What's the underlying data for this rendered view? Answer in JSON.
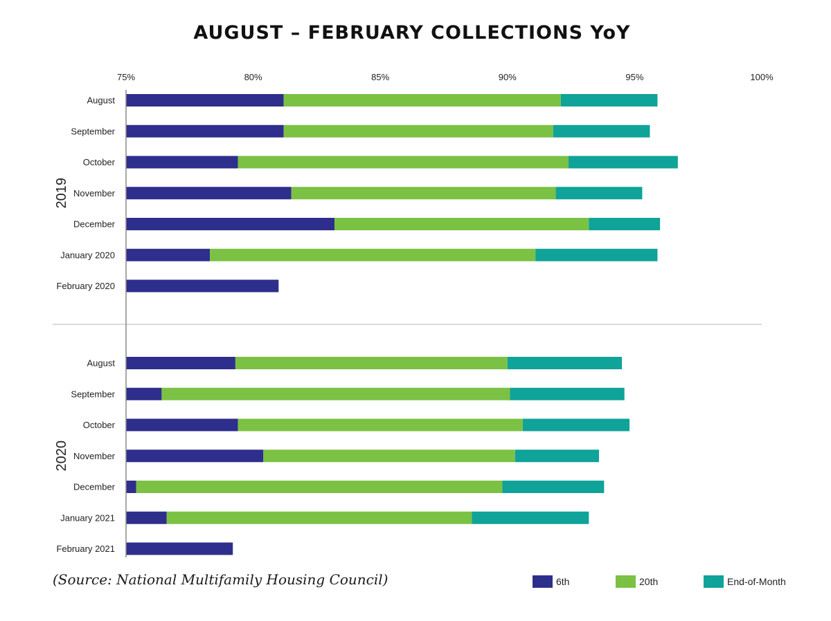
{
  "chart_data": {
    "type": "bar",
    "orientation": "horizontal",
    "stacked": true,
    "title": "AUGUST – FEBRUARY COLLECTIONS YoY",
    "xlim": [
      75,
      100
    ],
    "x_ticks": [
      "75%",
      "80%",
      "85%",
      "90%",
      "95%",
      "100%"
    ],
    "x_tick_values": [
      75,
      80,
      85,
      90,
      95,
      100
    ],
    "grid": false,
    "legend_position": "bottom-right",
    "series": [
      {
        "name": "6th",
        "color": "#2e2e8c"
      },
      {
        "name": "20th",
        "color": "#7bc144"
      },
      {
        "name": "End-of-Month",
        "color": "#0fa399"
      }
    ],
    "groups": [
      {
        "label": "2019",
        "rows": [
          {
            "category": "August",
            "values": [
              81.2,
              92.1,
              95.9
            ]
          },
          {
            "category": "September",
            "values": [
              81.2,
              91.8,
              95.6
            ]
          },
          {
            "category": "October",
            "values": [
              79.4,
              92.4,
              96.7
            ]
          },
          {
            "category": "November",
            "values": [
              81.5,
              91.9,
              95.3
            ]
          },
          {
            "category": "December",
            "values": [
              83.2,
              93.2,
              96.0
            ]
          },
          {
            "category": "January 2020",
            "values": [
              78.3,
              91.1,
              95.9
            ]
          },
          {
            "category": "February 2020",
            "values": [
              81.0,
              null,
              null
            ]
          }
        ]
      },
      {
        "label": "2020",
        "rows": [
          {
            "category": "August",
            "values": [
              79.3,
              90.0,
              94.5
            ]
          },
          {
            "category": "September",
            "values": [
              76.4,
              90.1,
              94.6
            ]
          },
          {
            "category": "October",
            "values": [
              79.4,
              90.6,
              94.8
            ]
          },
          {
            "category": "November",
            "values": [
              80.4,
              90.3,
              93.6
            ]
          },
          {
            "category": "December",
            "values": [
              75.4,
              89.8,
              93.8
            ]
          },
          {
            "category": "January 2021",
            "values": [
              76.6,
              88.6,
              93.2
            ]
          },
          {
            "category": "February 2021",
            "values": [
              79.2,
              null,
              null
            ]
          }
        ]
      }
    ]
  },
  "source_note": "(Source: National Multifamily Housing Council)"
}
